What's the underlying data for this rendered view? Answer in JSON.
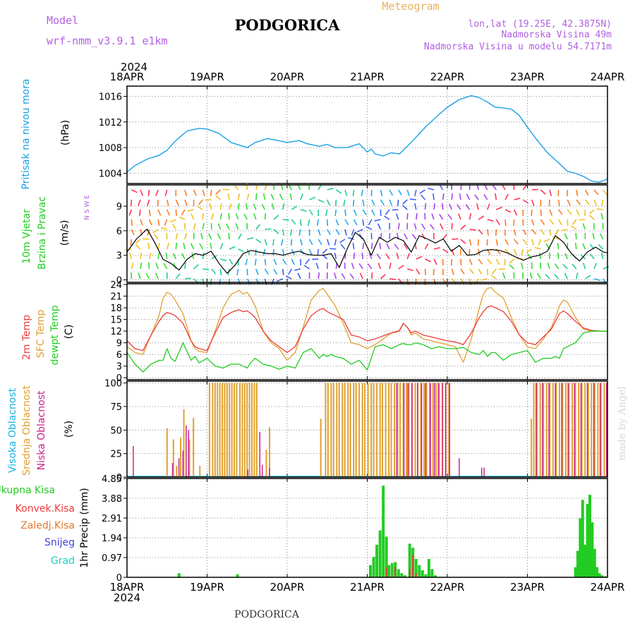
{
  "header": {
    "model_label": "Model",
    "model_name": "wrf-nmm_v3.9.1 e1km",
    "station": "PODGORICA",
    "meteogram": "Meteogram",
    "lonlat": "lon,lat (19.25E, 42.3875N)",
    "altitude": "Nadmorska Visina 49m",
    "model_altitude": "Nadmorska Visina u modelu 54.7171m",
    "footer_station": "PODGORICA",
    "credit": "made by Angel"
  },
  "colors": {
    "pressure": "#1aa0e6",
    "wind_speed": "#000000",
    "t2m": "#ec3b3b",
    "tsfc": "#e0a030",
    "dewpoint": "#22cc22",
    "cloud_high": "#1ab0e0",
    "cloud_mid": "#e0a030",
    "cloud_low": "#cc2288",
    "precip_total": "#22cc22",
    "precip_conv": "#ec3b3b",
    "precip_frozen": "#e07a30",
    "precip_snow": "#4040e0",
    "precip_graupel": "#1ad0c0"
  },
  "time_axis": {
    "year": "2024",
    "labels": [
      "18APR",
      "19APR",
      "20APR",
      "21APR",
      "22APR",
      "23APR",
      "24APR"
    ]
  },
  "chart_data": [
    {
      "type": "line",
      "panel": "pressure",
      "ylabel_left": "Pritisak na nivou mora",
      "unit": "(hPa)",
      "ylim": [
        1002.4,
        1017.6
      ],
      "yticks": [
        1004,
        1008,
        1012,
        1016
      ],
      "x_days": [
        0,
        0.1,
        0.25,
        0.4,
        0.5,
        0.6,
        0.75,
        0.9,
        1.0,
        1.15,
        1.3,
        1.5,
        1.6,
        1.75,
        1.85,
        2.0,
        2.15,
        2.25,
        2.4,
        2.5,
        2.6,
        2.75,
        2.9,
        3.0,
        3.05,
        3.1,
        3.2,
        3.3,
        3.4,
        3.5,
        3.6,
        3.75,
        3.9,
        4.0,
        4.15,
        4.3,
        4.4,
        4.5,
        4.6,
        4.7,
        4.8,
        4.9,
        5.0,
        5.1,
        5.25,
        5.4,
        5.5,
        5.6,
        5.7,
        5.8,
        5.9,
        6.0
      ],
      "series": [
        {
          "values": [
            1004.2,
            1005.2,
            1006.2,
            1006.8,
            1007.6,
            1009.0,
            1010.6,
            1011.0,
            1010.9,
            1010.2,
            1008.8,
            1008.0,
            1008.8,
            1009.4,
            1009.2,
            1008.8,
            1009.1,
            1008.6,
            1008.2,
            1008.5,
            1008.0,
            1008.0,
            1008.6,
            1007.3,
            1007.8,
            1007.0,
            1006.7,
            1007.2,
            1007.0,
            1008.2,
            1009.5,
            1011.5,
            1013.2,
            1014.3,
            1015.5,
            1016.1,
            1015.8,
            1015.1,
            1014.3,
            1014.2,
            1014.0,
            1013.0,
            1011.2,
            1009.5,
            1007.2,
            1005.5,
            1004.3,
            1004.0,
            1003.5,
            1002.8,
            1002.6,
            1003.1
          ]
        }
      ]
    },
    {
      "type": "line",
      "panel": "wind",
      "ylabel_left": [
        "10m Vjetar",
        "Brzina i Pravac"
      ],
      "unit": "(m/s)",
      "compass": "N S W E",
      "ylim": [
        -0.3,
        11.6
      ],
      "yticks": [
        0,
        3,
        6,
        9
      ],
      "x_days": [
        0,
        0.12,
        0.25,
        0.35,
        0.45,
        0.55,
        0.65,
        0.75,
        0.85,
        0.95,
        1.05,
        1.15,
        1.25,
        1.35,
        1.45,
        1.55,
        1.65,
        1.75,
        1.85,
        1.95,
        2.05,
        2.15,
        2.25,
        2.35,
        2.45,
        2.55,
        2.65,
        2.75,
        2.85,
        2.95,
        3.05,
        3.15,
        3.25,
        3.35,
        3.45,
        3.55,
        3.65,
        3.75,
        3.85,
        3.95,
        4.05,
        4.15,
        4.25,
        4.35,
        4.45,
        4.55,
        4.65,
        4.75,
        4.85,
        4.95,
        5.05,
        5.15,
        5.25,
        5.35,
        5.45,
        5.55,
        5.65,
        5.75,
        5.85,
        5.95,
        6.0
      ],
      "series": [
        {
          "values": [
            3.4,
            5.0,
            6.2,
            4.5,
            2.5,
            2.0,
            1.2,
            2.5,
            3.2,
            3.0,
            3.5,
            2.0,
            0.8,
            1.8,
            3.2,
            3.6,
            3.4,
            3.2,
            3.2,
            3.0,
            3.3,
            3.5,
            3.1,
            3.0,
            3.0,
            3.2,
            1.5,
            3.8,
            5.8,
            5.0,
            3.0,
            5.2,
            4.6,
            5.2,
            4.8,
            3.4,
            5.4,
            5.0,
            4.5,
            5.0,
            3.5,
            4.2,
            3.0,
            3.1,
            3.6,
            3.7,
            3.6,
            3.3,
            2.8,
            2.4,
            2.8,
            3.0,
            3.5,
            5.4,
            4.6,
            3.2,
            2.3,
            3.4,
            4.0,
            3.4,
            3.3
          ]
        }
      ]
    },
    {
      "type": "line",
      "panel": "temperature",
      "ylabel_left": [
        "2m Temp",
        "SFC Temp",
        "dewpt Temp"
      ],
      "unit": "(C)",
      "ylim": [
        -0.5,
        24.2
      ],
      "yticks": [
        0,
        3,
        6,
        9,
        12,
        15,
        18,
        21,
        24
      ],
      "x_days": [
        0,
        0.1,
        0.2,
        0.3,
        0.4,
        0.45,
        0.5,
        0.55,
        0.6,
        0.7,
        0.8,
        0.85,
        0.9,
        1.0,
        1.1,
        1.2,
        1.3,
        1.4,
        1.45,
        1.5,
        1.55,
        1.6,
        1.7,
        1.8,
        1.9,
        2.0,
        2.1,
        2.2,
        2.3,
        2.4,
        2.45,
        2.5,
        2.55,
        2.6,
        2.7,
        2.8,
        2.9,
        3.0,
        3.1,
        3.2,
        3.3,
        3.4,
        3.45,
        3.5,
        3.55,
        3.6,
        3.7,
        3.8,
        3.9,
        4.0,
        4.1,
        4.2,
        4.3,
        4.4,
        4.45,
        4.5,
        4.55,
        4.6,
        4.7,
        4.8,
        4.9,
        5.0,
        5.1,
        5.2,
        5.3,
        5.35,
        5.4,
        5.45,
        5.5,
        5.6,
        5.7,
        5.8,
        5.9,
        6.0
      ],
      "series": [
        {
          "name": "2m Temp",
          "values": [
            9.5,
            7.5,
            7.0,
            11.0,
            14.5,
            16.0,
            16.8,
            16.5,
            16.0,
            14.0,
            9.5,
            8.0,
            7.5,
            7.0,
            11.5,
            15.5,
            16.8,
            17.5,
            17.0,
            17.2,
            16.5,
            15.5,
            12.0,
            9.5,
            8.0,
            6.5,
            8.0,
            12.5,
            16.0,
            17.5,
            17.8,
            17.0,
            16.5,
            16.0,
            15.0,
            11.0,
            10.5,
            9.5,
            10.0,
            10.8,
            11.5,
            12.0,
            14.0,
            13.0,
            11.5,
            12.0,
            11.0,
            10.5,
            10.0,
            9.5,
            9.2,
            8.5,
            11.5,
            15.5,
            17.0,
            18.2,
            18.5,
            18.0,
            17.0,
            14.5,
            11.0,
            9.0,
            8.5,
            10.5,
            12.5,
            14.5,
            16.5,
            17.2,
            16.5,
            14.5,
            12.8,
            12.2,
            12.0,
            12.0
          ]
        },
        {
          "name": "SFC Temp",
          "values": [
            8.0,
            6.5,
            6.0,
            11.0,
            16.0,
            20.5,
            22.0,
            21.5,
            20.0,
            16.5,
            9.5,
            7.5,
            6.8,
            6.5,
            12.0,
            18.0,
            21.5,
            22.5,
            21.5,
            22.0,
            20.5,
            18.5,
            12.0,
            9.0,
            7.5,
            4.5,
            6.5,
            13.0,
            20.0,
            22.5,
            23.0,
            21.5,
            20.0,
            18.5,
            14.0,
            9.0,
            8.5,
            7.5,
            8.5,
            10.0,
            11.5,
            12.2,
            14.0,
            13.0,
            11.0,
            11.5,
            10.0,
            9.5,
            9.0,
            8.5,
            8.0,
            4.0,
            10.0,
            18.0,
            21.5,
            23.0,
            23.2,
            22.0,
            20.5,
            15.5,
            11.0,
            8.0,
            7.5,
            10.0,
            13.0,
            15.5,
            18.5,
            20.0,
            19.5,
            15.5,
            12.5,
            12.0,
            12.0,
            12.0
          ]
        },
        {
          "name": "dewpt Temp",
          "values": [
            6.5,
            3.5,
            1.5,
            3.5,
            4.5,
            4.5,
            7.5,
            5.0,
            4.2,
            9.0,
            4.5,
            5.5,
            3.8,
            5.0,
            3.0,
            2.5,
            3.5,
            3.5,
            3.0,
            2.5,
            4.0,
            5.0,
            3.5,
            3.0,
            2.2,
            3.0,
            2.5,
            6.5,
            7.5,
            5.0,
            6.0,
            5.5,
            6.0,
            5.5,
            5.0,
            3.5,
            4.5,
            2.0,
            8.0,
            8.5,
            7.5,
            8.5,
            8.8,
            8.5,
            8.5,
            9.0,
            8.5,
            7.5,
            8.0,
            7.5,
            7.5,
            7.8,
            6.5,
            6.0,
            7.0,
            5.5,
            6.5,
            6.5,
            4.5,
            6.0,
            6.5,
            7.0,
            4.0,
            5.0,
            5.0,
            5.5,
            5.0,
            7.5,
            8.0,
            9.0,
            11.5,
            12.0,
            12.0,
            12.0
          ]
        }
      ]
    },
    {
      "type": "bar",
      "panel": "clouds",
      "ylabel_left": [
        "Visoka Oblacnost",
        "Srednja Oblacnost",
        "Niska Oblacnost"
      ],
      "unit": "(%)",
      "ylim": [
        0,
        102
      ],
      "yticks": [
        0,
        25,
        50,
        75,
        100
      ],
      "mid_x_days": [
        0.5,
        0.58,
        0.62,
        0.67,
        0.71,
        0.78,
        0.83,
        0.91,
        1.03,
        1.07,
        1.1,
        1.13,
        1.16,
        1.19,
        1.22,
        1.25,
        1.28,
        1.31,
        1.34,
        1.37,
        1.41,
        1.44,
        1.47,
        1.5,
        1.53,
        1.56,
        1.59,
        1.62,
        1.74,
        1.78,
        2.42,
        2.48,
        2.51,
        2.55,
        2.58,
        2.62,
        2.65,
        2.69,
        2.72,
        2.76,
        2.79,
        2.83,
        2.86,
        2.9,
        2.94,
        2.97,
        3.01,
        3.05,
        3.08,
        3.12,
        3.16,
        3.19,
        3.23,
        3.27,
        3.3,
        3.34,
        3.38,
        3.41,
        3.45,
        3.49,
        3.52,
        3.56,
        3.6,
        3.63,
        3.67,
        3.71,
        3.74,
        3.78,
        3.82,
        3.86,
        3.9,
        3.94,
        3.98,
        4.02,
        5.05,
        5.08,
        5.12,
        5.16,
        5.2,
        5.24,
        5.28,
        5.32,
        5.36,
        5.4,
        5.44,
        5.48,
        5.52,
        5.56,
        5.6,
        5.64,
        5.68,
        5.72,
        5.76,
        5.8,
        5.84,
        5.88,
        5.92,
        5.96
      ],
      "mid_values": [
        52,
        40,
        12,
        42,
        72,
        40,
        63,
        12,
        100,
        100,
        100,
        100,
        100,
        100,
        100,
        100,
        100,
        100,
        100,
        100,
        100,
        100,
        100,
        100,
        100,
        100,
        100,
        100,
        29,
        53,
        62,
        100,
        100,
        100,
        100,
        100,
        100,
        100,
        100,
        100,
        100,
        100,
        100,
        100,
        100,
        100,
        100,
        100,
        100,
        100,
        100,
        100,
        100,
        100,
        100,
        100,
        100,
        100,
        100,
        100,
        100,
        100,
        100,
        100,
        100,
        100,
        100,
        100,
        100,
        100,
        100,
        100,
        100,
        100,
        62,
        100,
        100,
        100,
        100,
        100,
        100,
        100,
        100,
        100,
        100,
        100,
        100,
        100,
        100,
        100,
        100,
        100,
        100,
        100,
        100,
        100,
        100,
        100
      ],
      "low_x_days": [
        0.07,
        0.56,
        0.64,
        0.69,
        0.73,
        0.76,
        1.5,
        1.65,
        1.68,
        1.77,
        3.36,
        3.45,
        3.5,
        3.55,
        3.62,
        3.67,
        3.72,
        3.78,
        3.83,
        3.88,
        3.93,
        3.97,
        4.02,
        4.14,
        4.42,
        4.45,
        5.1,
        5.18,
        5.26,
        5.34,
        5.42,
        5.5,
        5.58,
        5.66,
        5.74,
        5.82,
        5.9,
        5.98
      ],
      "low_values": [
        33,
        15,
        20,
        28,
        55,
        50,
        8,
        48,
        13,
        10,
        100,
        100,
        100,
        100,
        100,
        100,
        100,
        100,
        100,
        100,
        100,
        100,
        100,
        20,
        10,
        10,
        100,
        100,
        100,
        100,
        100,
        100,
        100,
        100,
        100,
        100,
        100,
        100
      ]
    },
    {
      "type": "bar",
      "panel": "precipitation",
      "ylabel_left": [
        "Ukupna Kisa",
        "Konvek.Kisa",
        "Zaledj.Kisa",
        "Snijeg",
        "Grad"
      ],
      "unit": "1hr Precip (mm)",
      "ylim": [
        0,
        4.85
      ],
      "yticks": [
        "0",
        "0.97",
        "1.94",
        "2.91",
        "3.88",
        "4.85"
      ],
      "yticks_values": [
        0,
        0.97,
        1.94,
        2.91,
        3.88,
        4.85
      ],
      "total_x_days": [
        0.65,
        1.38,
        3.04,
        3.08,
        3.12,
        3.16,
        3.2,
        3.24,
        3.27,
        3.31,
        3.35,
        3.39,
        3.43,
        3.47,
        3.53,
        3.57,
        3.61,
        3.65,
        3.69,
        3.73,
        3.77,
        3.81,
        3.85,
        5.6,
        5.63,
        5.66,
        5.69,
        5.72,
        5.75,
        5.78,
        5.81,
        5.84,
        5.87,
        5.9,
        5.93,
        5.97
      ],
      "total_values": [
        0.2,
        0.15,
        0.6,
        1.0,
        1.6,
        2.3,
        4.5,
        2.0,
        0.6,
        0.7,
        0.75,
        0.4,
        0.2,
        0.1,
        1.65,
        1.45,
        0.9,
        0.6,
        0.35,
        0.15,
        0.9,
        0.4,
        0.1,
        0.5,
        1.3,
        2.9,
        3.8,
        1.6,
        3.6,
        4.05,
        2.7,
        1.4,
        0.5,
        0.2,
        0.1,
        0.05
      ],
      "conv_x_days": [
        3.24,
        3.35,
        3.53,
        3.57,
        3.61
      ],
      "conv_values": [
        0.5,
        0.5,
        0.4,
        1.1,
        0.2
      ]
    }
  ]
}
